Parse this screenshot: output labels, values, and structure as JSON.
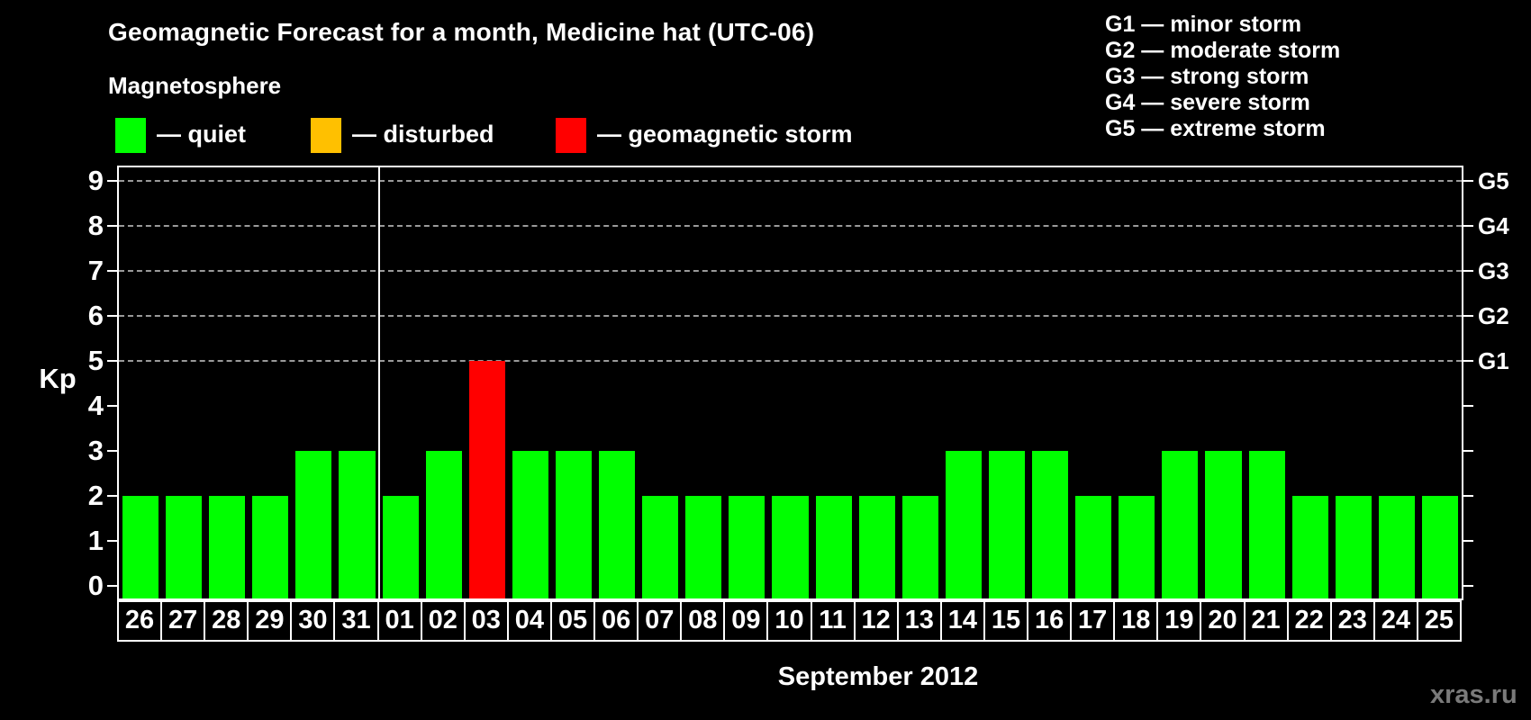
{
  "header": {
    "title": "Geomagnetic Forecast for a month, Medicine hat (UTC-06)",
    "subtitle": "Magnetosphere"
  },
  "legend": {
    "items": [
      {
        "name": "quiet",
        "label": "— quiet",
        "color": "#00ff00"
      },
      {
        "name": "disturbed",
        "label": "— disturbed",
        "color": "#ffc000"
      },
      {
        "name": "storm",
        "label": "— geomagnetic storm",
        "color": "#ff0000"
      }
    ]
  },
  "g_scale_legend": {
    "lines": [
      "G1 — minor storm",
      "G2 — moderate storm",
      "G3 — strong storm",
      "G4 — severe storm",
      "G5 — extreme storm"
    ]
  },
  "watermark": "xras.ru",
  "chart_data": {
    "type": "bar",
    "title": "Geomagnetic Forecast for a month, Medicine hat (UTC-06)",
    "ylabel": "Kp",
    "xlabel": "September 2012",
    "ylim": [
      0,
      9
    ],
    "y_ticks": [
      0,
      1,
      2,
      3,
      4,
      5,
      6,
      7,
      8,
      9
    ],
    "grid_levels": [
      5,
      6,
      7,
      8,
      9
    ],
    "grid_on": true,
    "right_axis_labels": [
      {
        "kp": 5,
        "label": "G1"
      },
      {
        "kp": 6,
        "label": "G2"
      },
      {
        "kp": 7,
        "label": "G3"
      },
      {
        "kp": 8,
        "label": "G4"
      },
      {
        "kp": 9,
        "label": "G5"
      }
    ],
    "month_divider_after_index": 5,
    "categories": [
      "26",
      "27",
      "28",
      "29",
      "30",
      "31",
      "01",
      "02",
      "03",
      "04",
      "05",
      "06",
      "07",
      "08",
      "09",
      "10",
      "11",
      "12",
      "13",
      "14",
      "15",
      "16",
      "17",
      "18",
      "19",
      "20",
      "21",
      "22",
      "23",
      "24",
      "25"
    ],
    "values": [
      2,
      2,
      2,
      2,
      3,
      3,
      2,
      3,
      5,
      3,
      3,
      3,
      2,
      2,
      2,
      2,
      2,
      2,
      2,
      3,
      3,
      3,
      2,
      2,
      3,
      3,
      3,
      2,
      2,
      2,
      2
    ],
    "statuses": [
      "quiet",
      "quiet",
      "quiet",
      "quiet",
      "quiet",
      "quiet",
      "quiet",
      "quiet",
      "storm",
      "quiet",
      "quiet",
      "quiet",
      "quiet",
      "quiet",
      "quiet",
      "quiet",
      "quiet",
      "quiet",
      "quiet",
      "quiet",
      "quiet",
      "quiet",
      "quiet",
      "quiet",
      "quiet",
      "quiet",
      "quiet",
      "quiet",
      "quiet",
      "quiet",
      "quiet"
    ],
    "colors": {
      "quiet": "#00ff00",
      "disturbed": "#ffc000",
      "storm": "#ff0000"
    }
  }
}
